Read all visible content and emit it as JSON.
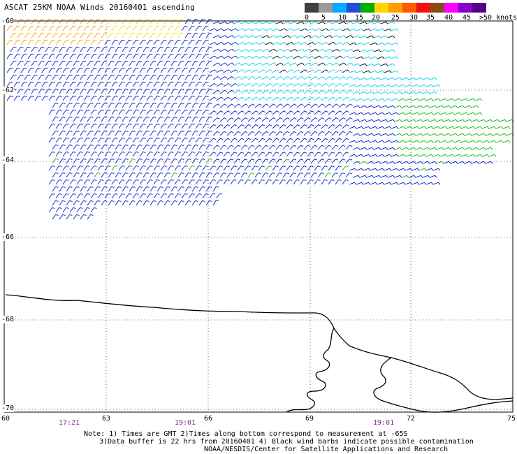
{
  "title": "ASCAT 25KM NOAA Winds 20160401 ascending",
  "legend": {
    "colors": [
      "#404040",
      "#9a9a9a",
      "#00aaff",
      "#1f4fd6",
      "#00b000",
      "#ffd400",
      "#ff9f00",
      "#ff5a00",
      "#ee1111",
      "#8b4a1a",
      "#ff00ff",
      "#8800cc",
      "#550088"
    ],
    "labels": [
      "0",
      "5",
      "10",
      "15",
      "20",
      "25",
      "30",
      "35",
      "40",
      "45",
      ">50 knots"
    ]
  },
  "axes": {
    "lat_labels": [
      "-60",
      "-62",
      "-64",
      "-66",
      "-68",
      "-70"
    ],
    "lon_labels": [
      "60",
      "63",
      "66",
      "69",
      "72",
      "75"
    ],
    "time_labels": [
      "17:21",
      "19:01",
      "19:01"
    ]
  },
  "notes": [
    "Note: 1) Times are GMT 2)Times along bottom correspond to measurement at -65S",
    "3)Data buffer is 22 hrs from 20160401 4) Black wind barbs indicate possible contamination",
    "NOAA/NESDIS/Center for Satellite Applications and Research"
  ],
  "barb_colors": {
    "black": "#000000",
    "cyan": "#00ccee",
    "blue": "#0018cc",
    "green": "#00c000",
    "yellow": "#ffd400",
    "orange": "#ff9f00"
  }
}
